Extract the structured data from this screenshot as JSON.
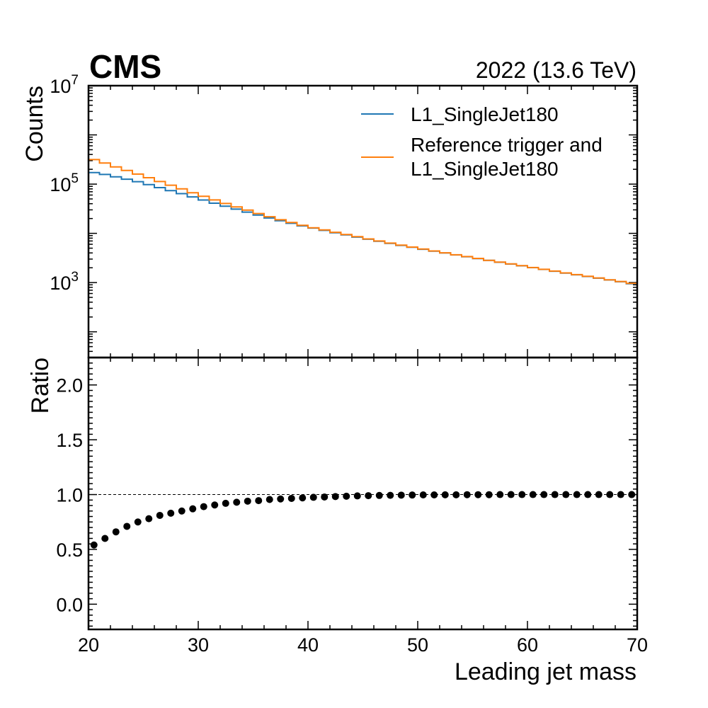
{
  "header": {
    "experiment": "CMS",
    "lumi_text": "2022 (13.6 TeV)"
  },
  "chart_data": [
    {
      "type": "line",
      "panel": "main",
      "drawstyle": "step",
      "ylabel": "Counts",
      "yscale": "log",
      "ylim": [
        30,
        10000000
      ],
      "xlim": [
        20,
        70
      ],
      "x_bin_edges": [
        20,
        21,
        22,
        23,
        24,
        25,
        26,
        27,
        28,
        29,
        30,
        31,
        32,
        33,
        34,
        35,
        36,
        37,
        38,
        39,
        40,
        41,
        42,
        43,
        44,
        45,
        46,
        47,
        48,
        49,
        50,
        51,
        52,
        53,
        54,
        55,
        56,
        57,
        58,
        59,
        60,
        61,
        62,
        63,
        64,
        65,
        66,
        67,
        68,
        69,
        70
      ],
      "y_tick_labels": [
        {
          "value": 1000,
          "base": "10",
          "exp": "3"
        },
        {
          "value": 100000,
          "base": "10",
          "exp": "5"
        },
        {
          "value": 10000000,
          "base": "10",
          "exp": "7"
        }
      ],
      "legend": {
        "position": "top-right"
      },
      "series": [
        {
          "name": "L1_SingleJet180",
          "color": "#1f77b4",
          "values": [
            172000,
            157000,
            141000,
            126000,
            112000,
            98000,
            85000,
            74000,
            64000,
            55000,
            47500,
            41000,
            35500,
            31000,
            27000,
            23500,
            20500,
            18000,
            16000,
            14200,
            12800,
            11500,
            10300,
            9300,
            8400,
            7600,
            6900,
            6250,
            5700,
            5200,
            4750,
            4350,
            4000,
            3650,
            3350,
            3070,
            2820,
            2590,
            2380,
            2190,
            2010,
            1850,
            1700,
            1560,
            1440,
            1330,
            1230,
            1130,
            1040,
            950
          ]
        },
        {
          "name": "Reference trigger and\nL1_SingleJet180",
          "color": "#ff7f0e",
          "values": [
            315000,
            268000,
            224000,
            189000,
            160000,
            135000,
            113000,
            95000,
            80000,
            67000,
            56500,
            47700,
            40500,
            34500,
            29600,
            25300,
            21800,
            18900,
            16600,
            14600,
            13000,
            11700,
            10500,
            9450,
            8550,
            7700,
            7000,
            6330,
            5760,
            5250,
            4790,
            4380,
            4020,
            3670,
            3370,
            3090,
            2830,
            2600,
            2390,
            2200,
            2020,
            1860,
            1710,
            1570,
            1450,
            1340,
            1240,
            1140,
            1050,
            960
          ]
        }
      ]
    },
    {
      "type": "scatter",
      "panel": "ratio",
      "xlabel": "Leading jet mass",
      "ylabel": "Ratio",
      "xlim": [
        20,
        70
      ],
      "ylim": [
        -0.23,
        2.25
      ],
      "x_ticks": [
        20,
        30,
        40,
        50,
        60,
        70
      ],
      "x_tick_labels": [
        "20",
        "30",
        "40",
        "50",
        "60",
        "70"
      ],
      "y_ticks": [
        0.0,
        0.5,
        1.0,
        1.5,
        2.0
      ],
      "y_tick_labels": [
        "0.0",
        "0.5",
        "1.0",
        "1.5",
        "2.0"
      ],
      "reference_line": 1.0,
      "series": [
        {
          "color": "#000000",
          "x": [
            20.5,
            21.5,
            22.5,
            23.5,
            24.5,
            25.5,
            26.5,
            27.5,
            28.5,
            29.5,
            30.5,
            31.5,
            32.5,
            33.5,
            34.5,
            35.5,
            36.5,
            37.5,
            38.5,
            39.5,
            40.5,
            41.5,
            42.5,
            43.5,
            44.5,
            45.5,
            46.5,
            47.5,
            48.5,
            49.5,
            50.5,
            51.5,
            52.5,
            53.5,
            54.5,
            55.5,
            56.5,
            57.5,
            58.5,
            59.5,
            60.5,
            61.5,
            62.5,
            63.5,
            64.5,
            65.5,
            66.5,
            67.5,
            68.5,
            69.5
          ],
          "values": [
            0.54,
            0.6,
            0.66,
            0.71,
            0.75,
            0.78,
            0.81,
            0.83,
            0.85,
            0.87,
            0.89,
            0.905,
            0.92,
            0.93,
            0.94,
            0.945,
            0.955,
            0.96,
            0.965,
            0.97,
            0.975,
            0.978,
            0.982,
            0.985,
            0.988,
            0.99,
            0.992,
            0.993,
            0.995,
            0.996,
            0.997,
            0.997,
            0.998,
            0.998,
            0.999,
            0.999,
            0.999,
            1.0,
            1.0,
            1.0,
            1.0,
            1.0,
            1.0,
            1.0,
            1.0,
            1.0,
            1.0,
            1.0,
            1.0,
            1.0
          ]
        }
      ]
    }
  ]
}
